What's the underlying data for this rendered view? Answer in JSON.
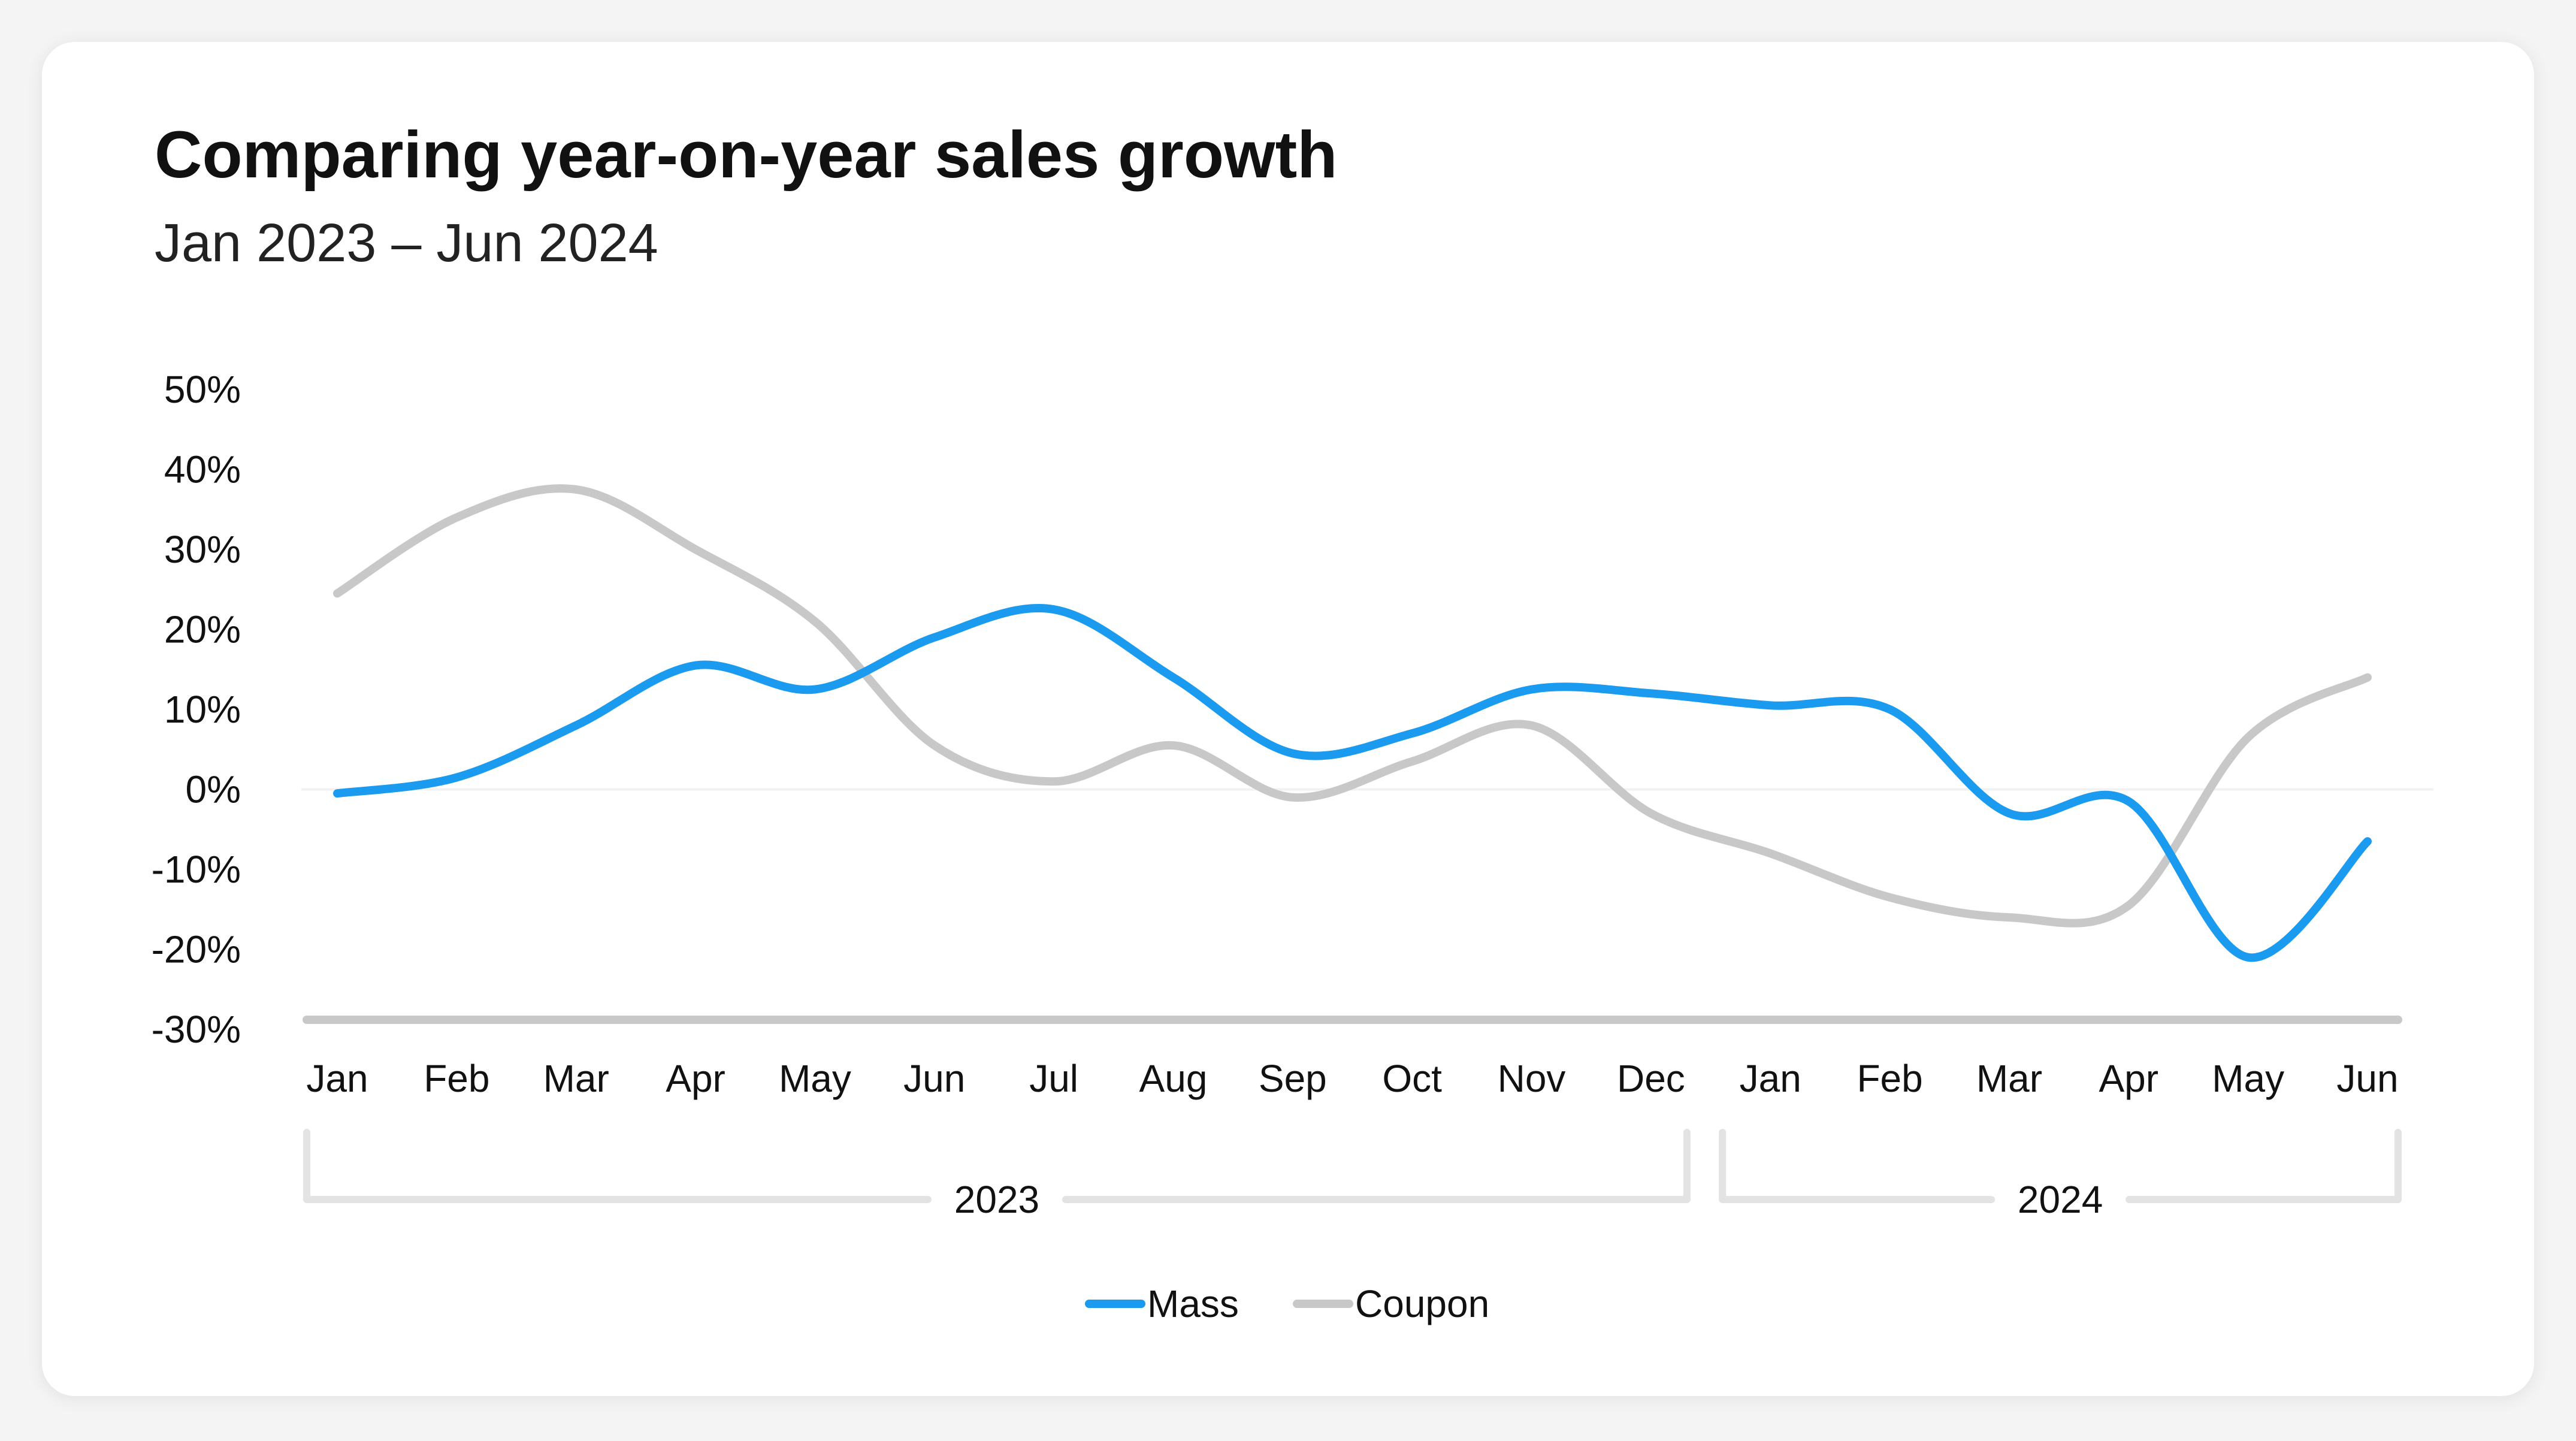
{
  "chart_data": {
    "type": "line",
    "title": "Comparing year-on-year sales growth",
    "subtitle": "Jan 2023 – Jun 2024",
    "categories": [
      "Jan",
      "Feb",
      "Mar",
      "Apr",
      "May",
      "Jun",
      "Jul",
      "Aug",
      "Sep",
      "Oct",
      "Nov",
      "Dec",
      "Jan",
      "Feb",
      "Mar",
      "Apr",
      "May",
      "Jun"
    ],
    "year_groups": [
      {
        "label": "2023",
        "start": 0,
        "end": 11
      },
      {
        "label": "2024",
        "start": 12,
        "end": 17
      }
    ],
    "yticks": [
      50,
      40,
      30,
      20,
      10,
      0,
      -10,
      -20,
      -30
    ],
    "ytick_labels": [
      "50%",
      "40%",
      "30%",
      "20%",
      "10%",
      "0%",
      "-10%",
      "-20%",
      "-30%"
    ],
    "ylim": [
      -30,
      50
    ],
    "series": [
      {
        "name": "Mass",
        "color": "#1a9bf0",
        "values": [
          -0.5,
          1.5,
          8,
          15.5,
          12.5,
          19,
          22.5,
          14,
          4.5,
          7,
          12.5,
          12,
          10.5,
          10,
          -3,
          -1.5,
          -21,
          -6.5
        ]
      },
      {
        "name": "Coupon",
        "color": "#c8c8c8",
        "values": [
          24.5,
          34,
          37.5,
          30,
          21,
          5.5,
          1,
          5.5,
          -1,
          3.5,
          8,
          -3,
          -8,
          -13.5,
          -16,
          -14.5,
          6.5,
          14
        ]
      }
    ],
    "legend_position": "bottom-center",
    "grid": false
  }
}
